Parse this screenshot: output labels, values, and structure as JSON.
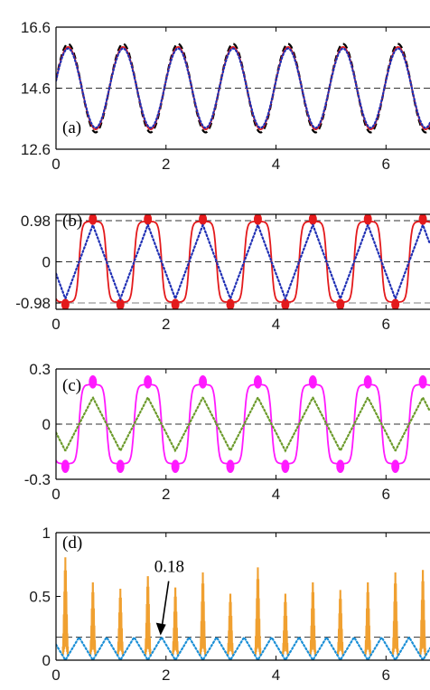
{
  "chart_data": [
    {
      "id": "a",
      "type": "line",
      "panel_label": "(a)",
      "xlim": [
        0,
        6.8
      ],
      "ylim": [
        12.6,
        16.6
      ],
      "x_ticks": [
        0,
        2,
        4,
        6
      ],
      "x_tick_labels": [
        "0",
        "2",
        "4",
        "6"
      ],
      "y_ticks": [
        12.6,
        14.6,
        16.6
      ],
      "y_tick_labels": [
        "12.6",
        "14.6",
        "16.6"
      ],
      "period": 1.0,
      "reference_lines": [
        {
          "y": 14.6,
          "style": "dashed",
          "color": "#333333"
        }
      ],
      "series": [
        {
          "style": "dashed",
          "color": "#000000",
          "mean": 14.6,
          "amplitude": 1.45,
          "phase": 0.22,
          "shape": "sine"
        },
        {
          "style": "solid",
          "color": "#e31a1c",
          "mean": 14.6,
          "amplitude": 1.35,
          "phase": 0.22,
          "shape": "sine"
        },
        {
          "style": "dotted",
          "color": "#1f2fb4",
          "mean": 14.6,
          "amplitude": 1.3,
          "phase": 0.22,
          "shape": "sine"
        }
      ]
    },
    {
      "id": "b",
      "type": "line",
      "panel_label": "(b)",
      "xlim": [
        0,
        6.8
      ],
      "ylim": [
        -1.13,
        1.13
      ],
      "x_ticks": [
        0,
        2,
        4,
        6
      ],
      "x_tick_labels": [
        "0",
        "2",
        "4",
        "6"
      ],
      "y_ticks": [
        -0.98,
        0,
        0.98
      ],
      "y_tick_labels": [
        "-0.98",
        "0",
        "0.98"
      ],
      "period": 1.0,
      "reference_lines": [
        {
          "y": 0.98,
          "style": "dashed",
          "color": "#333333"
        },
        {
          "y": 0,
          "style": "dashed",
          "color": "#333333"
        },
        {
          "y": -0.98,
          "style": "dashed",
          "color": "#999999"
        }
      ],
      "series": [
        {
          "style": "solid",
          "color": "#e31a1c",
          "amplitude": 0.96,
          "phase": 0.67,
          "shape": "squarish",
          "spikes": true
        },
        {
          "style": "dotted",
          "color": "#1f2fb4",
          "amplitude": 0.88,
          "phase": 0.67,
          "shape": "triangle"
        }
      ]
    },
    {
      "id": "c",
      "type": "line",
      "panel_label": "(c)",
      "xlim": [
        0,
        6.8
      ],
      "ylim": [
        -0.3,
        0.3
      ],
      "x_ticks": [
        0,
        2,
        4,
        6
      ],
      "x_tick_labels": [
        "0",
        "2",
        "4",
        "6"
      ],
      "y_ticks": [
        -0.3,
        0,
        0.3
      ],
      "y_tick_labels": [
        "-0.3",
        "0",
        "0.3"
      ],
      "period": 1.0,
      "reference_lines": [
        {
          "y": 0,
          "style": "dashed",
          "color": "#333333"
        }
      ],
      "series": [
        {
          "style": "solid",
          "color": "#ff19ff",
          "amplitude": 0.215,
          "phase": 0.67,
          "shape": "squarish",
          "spikes": true
        },
        {
          "style": "dotted",
          "color": "#6b9a2a",
          "amplitude": 0.145,
          "phase": 0.67,
          "shape": "triangle"
        }
      ]
    },
    {
      "id": "d",
      "type": "line",
      "panel_label": "(d)",
      "xlim": [
        0,
        6.8
      ],
      "ylim": [
        0,
        1
      ],
      "x_ticks": [
        0,
        2,
        4,
        6
      ],
      "x_tick_labels": [
        "0",
        "2",
        "4",
        "6"
      ],
      "y_ticks": [
        0,
        0.5,
        1
      ],
      "y_tick_labels": [
        "0",
        "0.5",
        "1"
      ],
      "reference_lines": [
        {
          "y": 0.18,
          "style": "dashed",
          "color": "#333333"
        }
      ],
      "annotation": {
        "text": "0.18",
        "arrow_target": [
          1.95,
          0.18
        ]
      },
      "series": [
        {
          "style": "bursts",
          "color": "#f0a030",
          "centers": [
            0.17,
            0.67,
            1.17,
            1.67,
            2.17,
            2.67,
            3.17,
            3.67,
            4.17,
            4.67,
            5.17,
            5.67,
            6.17,
            6.67
          ],
          "peaks": [
            0.82,
            0.62,
            0.57,
            0.67,
            0.58,
            0.7,
            0.53,
            0.74,
            0.53,
            0.62,
            0.56,
            0.62,
            0.7,
            0.72
          ]
        },
        {
          "style": "dotted",
          "color": "#1b8fd6",
          "amplitude": 0.18,
          "phase": 0.17,
          "shape": "triangle-abs"
        }
      ]
    }
  ]
}
